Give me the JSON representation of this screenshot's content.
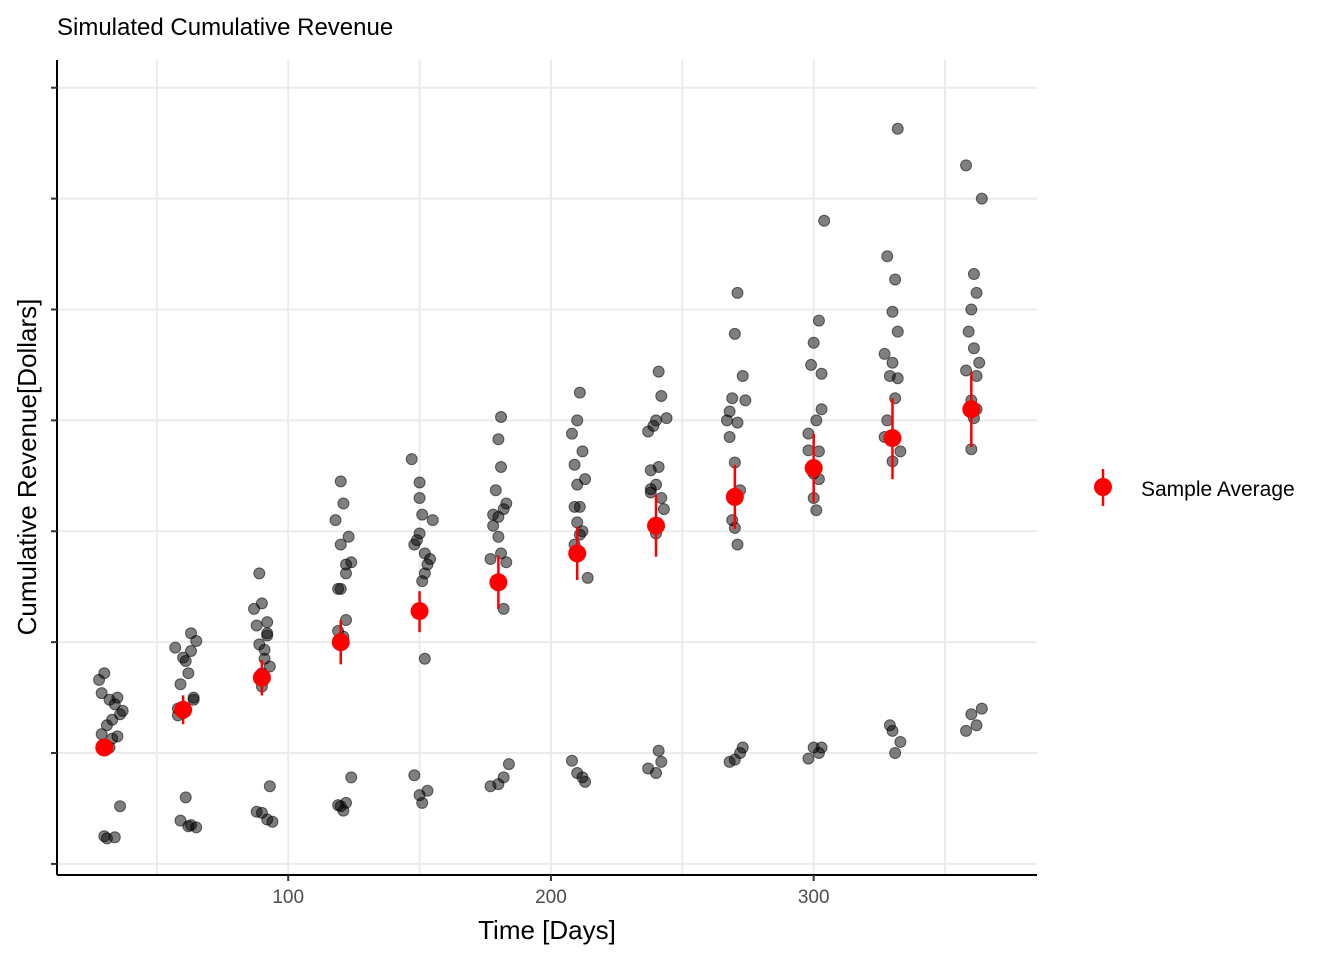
{
  "chart_data": {
    "type": "scatter",
    "title": "Simulated Cumulative Revenue",
    "xlabel": "Time [Days]",
    "ylabel": "Cumulative Revenue[Dollars]",
    "xlim": [
      12,
      385
    ],
    "ylim": [
      -0.1,
      7.25
    ],
    "x_ticks": [
      100,
      200,
      300
    ],
    "x_tick_labels": [
      "100",
      "200",
      "300"
    ],
    "y_ticks": [
      0,
      1,
      2,
      3,
      4,
      5,
      6,
      7
    ],
    "y_tick_labels": [
      "",
      "",
      "",
      "",
      "",
      "",
      "",
      ""
    ],
    "grid": true,
    "legend": {
      "position": "right",
      "entries": [
        "Sample Average"
      ]
    },
    "colors": {
      "points": "#000000",
      "average": "#ff0000",
      "grid": "#ebebeb"
    },
    "series": [
      {
        "name": "",
        "kind": "observations",
        "points": [
          [
            30,
            1.72
          ],
          [
            32,
            1.48
          ],
          [
            34,
            1.44
          ],
          [
            35,
            1.5
          ],
          [
            29,
            1.54
          ],
          [
            31,
            1.25
          ],
          [
            33,
            1.13
          ],
          [
            36,
            1.35
          ],
          [
            37,
            1.38
          ],
          [
            28,
            1.66
          ],
          [
            32,
            1.05
          ],
          [
            30,
            0.25
          ],
          [
            34,
            0.24
          ],
          [
            36,
            0.52
          ],
          [
            31,
            0.23
          ],
          [
            29,
            1.17
          ],
          [
            35,
            1.15
          ],
          [
            33,
            1.3
          ],
          [
            60,
            1.86
          ],
          [
            63,
            2.08
          ],
          [
            61,
            1.83
          ],
          [
            59,
            1.62
          ],
          [
            62,
            1.72
          ],
          [
            64,
            1.5
          ],
          [
            58,
            1.4
          ],
          [
            65,
            2.01
          ],
          [
            63,
            1.92
          ],
          [
            57,
            1.95
          ],
          [
            61,
            0.6
          ],
          [
            63,
            0.35
          ],
          [
            65,
            0.33
          ],
          [
            59,
            0.39
          ],
          [
            62,
            0.34
          ],
          [
            60,
            1.36
          ],
          [
            64,
            1.48
          ],
          [
            58,
            1.34
          ],
          [
            90,
            2.35
          ],
          [
            92,
            2.08
          ],
          [
            89,
            1.98
          ],
          [
            93,
            1.78
          ],
          [
            88,
            2.15
          ],
          [
            91,
            1.93
          ],
          [
            90,
            1.72
          ],
          [
            87,
            2.3
          ],
          [
            92,
            2.18
          ],
          [
            89,
            2.62
          ],
          [
            90,
            0.46
          ],
          [
            92,
            0.4
          ],
          [
            94,
            0.38
          ],
          [
            93,
            0.7
          ],
          [
            88,
            0.47
          ],
          [
            91,
            1.85
          ],
          [
            90,
            1.6
          ],
          [
            92,
            2.06
          ],
          [
            120,
            2.88
          ],
          [
            122,
            2.7
          ],
          [
            119,
            2.48
          ],
          [
            121,
            3.25
          ],
          [
            123,
            2.95
          ],
          [
            118,
            3.1
          ],
          [
            120,
            3.45
          ],
          [
            124,
            2.72
          ],
          [
            121,
            2.05
          ],
          [
            119,
            2.1
          ],
          [
            122,
            2.2
          ],
          [
            120,
            0.52
          ],
          [
            122,
            0.55
          ],
          [
            119,
            0.53
          ],
          [
            124,
            0.78
          ],
          [
            121,
            0.48
          ],
          [
            122,
            2.62
          ],
          [
            120,
            2.48
          ],
          [
            150,
            2.98
          ],
          [
            152,
            2.62
          ],
          [
            148,
            2.88
          ],
          [
            151,
            3.15
          ],
          [
            153,
            2.7
          ],
          [
            149,
            2.92
          ],
          [
            150,
            3.44
          ],
          [
            147,
            3.65
          ],
          [
            155,
            3.1
          ],
          [
            152,
            2.8
          ],
          [
            151,
            2.55
          ],
          [
            150,
            0.62
          ],
          [
            148,
            0.8
          ],
          [
            153,
            0.66
          ],
          [
            151,
            0.55
          ],
          [
            152,
            1.85
          ],
          [
            154,
            2.75
          ],
          [
            150,
            3.3
          ],
          [
            180,
            3.13
          ],
          [
            183,
            2.72
          ],
          [
            178,
            3.05
          ],
          [
            181,
            3.58
          ],
          [
            179,
            3.37
          ],
          [
            182,
            3.2
          ],
          [
            177,
            2.75
          ],
          [
            180,
            3.83
          ],
          [
            181,
            4.03
          ],
          [
            178,
            3.15
          ],
          [
            183,
            3.25
          ],
          [
            180,
            0.72
          ],
          [
            182,
            0.78
          ],
          [
            177,
            0.7
          ],
          [
            184,
            0.9
          ],
          [
            181,
            2.8
          ],
          [
            180,
            2.95
          ],
          [
            182,
            2.3
          ],
          [
            210,
            3.42
          ],
          [
            212,
            3.0
          ],
          [
            209,
            3.6
          ],
          [
            211,
            3.22
          ],
          [
            213,
            3.47
          ],
          [
            208,
            3.88
          ],
          [
            210,
            4.0
          ],
          [
            212,
            3.72
          ],
          [
            209,
            2.88
          ],
          [
            211,
            4.25
          ],
          [
            214,
            2.58
          ],
          [
            210,
            0.82
          ],
          [
            212,
            0.78
          ],
          [
            208,
            0.93
          ],
          [
            213,
            0.74
          ],
          [
            209,
            3.22
          ],
          [
            211,
            2.97
          ],
          [
            210,
            3.08
          ],
          [
            240,
            3.42
          ],
          [
            243,
            3.2
          ],
          [
            238,
            3.35
          ],
          [
            241,
            3.58
          ],
          [
            239,
            3.95
          ],
          [
            242,
            4.22
          ],
          [
            237,
            3.9
          ],
          [
            240,
            4.0
          ],
          [
            241,
            4.44
          ],
          [
            238,
            3.55
          ],
          [
            244,
            4.02
          ],
          [
            240,
            0.82
          ],
          [
            242,
            0.92
          ],
          [
            237,
            0.86
          ],
          [
            241,
            1.02
          ],
          [
            242,
            3.3
          ],
          [
            240,
            2.98
          ],
          [
            238,
            3.38
          ],
          [
            270,
            3.62
          ],
          [
            272,
            3.37
          ],
          [
            268,
            3.85
          ],
          [
            271,
            3.98
          ],
          [
            269,
            4.2
          ],
          [
            273,
            4.4
          ],
          [
            267,
            4.0
          ],
          [
            270,
            4.78
          ],
          [
            271,
            5.15
          ],
          [
            268,
            4.08
          ],
          [
            274,
            4.18
          ],
          [
            270,
            0.94
          ],
          [
            272,
            1.0
          ],
          [
            268,
            0.92
          ],
          [
            273,
            1.05
          ],
          [
            270,
            3.03
          ],
          [
            271,
            2.88
          ],
          [
            269,
            3.1
          ],
          [
            300,
            3.52
          ],
          [
            302,
            3.47
          ],
          [
            298,
            3.88
          ],
          [
            301,
            4.0
          ],
          [
            303,
            4.1
          ],
          [
            299,
            4.5
          ],
          [
            300,
            4.7
          ],
          [
            302,
            4.9
          ],
          [
            303,
            4.42
          ],
          [
            298,
            3.73
          ],
          [
            304,
            5.8
          ],
          [
            300,
            1.05
          ],
          [
            302,
            1.0
          ],
          [
            298,
            0.95
          ],
          [
            303,
            1.05
          ],
          [
            301,
            3.19
          ],
          [
            300,
            3.3
          ],
          [
            302,
            3.72
          ],
          [
            330,
            3.63
          ],
          [
            333,
            3.72
          ],
          [
            328,
            4.0
          ],
          [
            331,
            4.2
          ],
          [
            329,
            4.4
          ],
          [
            332,
            4.8
          ],
          [
            327,
            4.6
          ],
          [
            330,
            4.98
          ],
          [
            331,
            5.27
          ],
          [
            328,
            5.48
          ],
          [
            332,
            6.63
          ],
          [
            330,
            1.2
          ],
          [
            333,
            1.1
          ],
          [
            329,
            1.25
          ],
          [
            331,
            1.0
          ],
          [
            327,
            3.85
          ],
          [
            330,
            4.52
          ],
          [
            332,
            4.38
          ],
          [
            360,
            4.18
          ],
          [
            362,
            4.4
          ],
          [
            358,
            4.45
          ],
          [
            361,
            4.65
          ],
          [
            363,
            4.52
          ],
          [
            359,
            4.8
          ],
          [
            360,
            5.0
          ],
          [
            362,
            5.15
          ],
          [
            361,
            5.32
          ],
          [
            358,
            6.3
          ],
          [
            364,
            6.0
          ],
          [
            360,
            1.35
          ],
          [
            362,
            1.25
          ],
          [
            358,
            1.2
          ],
          [
            364,
            1.4
          ],
          [
            361,
            4.02
          ],
          [
            360,
            3.74
          ],
          [
            362,
            4.1
          ]
        ]
      },
      {
        "name": "Sample Average",
        "kind": "mean_with_error",
        "x": [
          30,
          60,
          90,
          120,
          150,
          180,
          210,
          240,
          270,
          300,
          330,
          360
        ],
        "y": [
          1.05,
          1.39,
          1.68,
          2.0,
          2.28,
          2.54,
          2.8,
          3.05,
          3.31,
          3.57,
          3.84,
          4.1
        ],
        "lower": [
          1.0,
          1.26,
          1.52,
          1.8,
          2.09,
          2.3,
          2.56,
          2.77,
          3.02,
          3.26,
          3.47,
          3.76
        ],
        "upper": [
          1.1,
          1.52,
          1.84,
          2.2,
          2.46,
          2.78,
          3.04,
          3.33,
          3.6,
          3.88,
          4.2,
          4.44
        ]
      }
    ]
  }
}
